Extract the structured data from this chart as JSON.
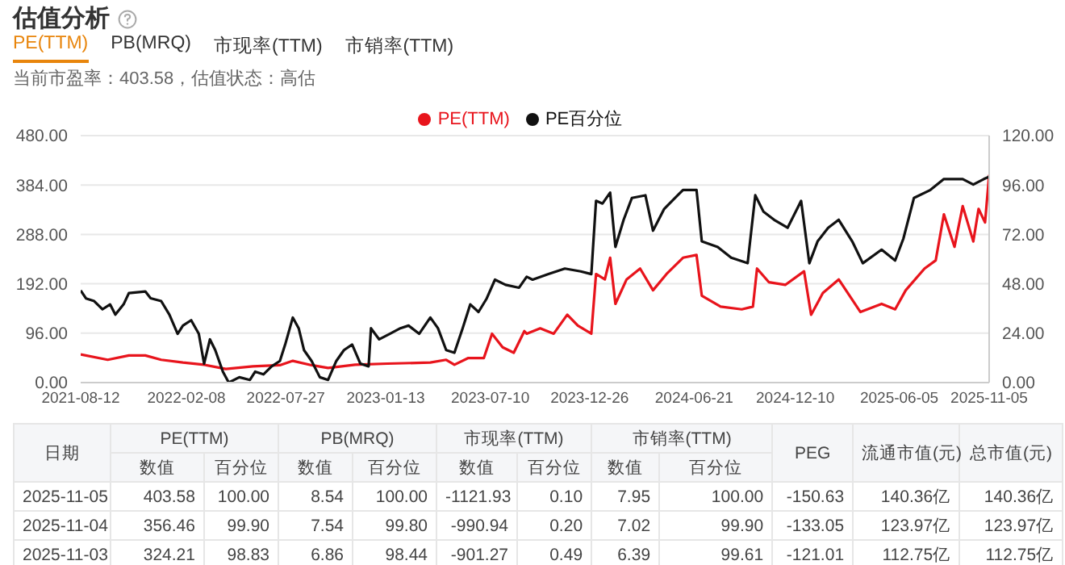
{
  "chart_data": {
    "type": "line",
    "title": "估值分析",
    "subtitle": "当前市盈率：403.58，估值状态：高估",
    "annotations": [
      "PE(TTM)",
      "PB(MRQ)",
      "市现率(TTM)",
      "市销率(TTM)",
      "日期",
      "PE(TTM)",
      "PB(MRQ)",
      "市现率(TTM)",
      "市销率(TTM)",
      "PEG",
      "流通市值(元)",
      "总市值(元)",
      "数值",
      "百分位",
      "数值",
      "百分位",
      "数值",
      "百分位",
      "数值",
      "百分位",
      "2025-11-05",
      "403.58",
      "100.00",
      "8.54",
      "100.00",
      "-1121.93",
      "0.10",
      "7.95",
      "100.00",
      "-150.63",
      "140.36亿",
      "140.36亿",
      "2025-11-04",
      "356.46",
      "99.90",
      "7.54",
      "99.80",
      "-990.94",
      "0.20",
      "7.02",
      "99.90",
      "-133.05",
      "123.97亿",
      "123.97亿",
      "2025-11-03",
      "324.21",
      "98.83",
      "6.86",
      "98.44",
      "-901.27",
      "0.49",
      "6.39",
      "99.61",
      "-121.01",
      "112.75亿",
      "112.75亿"
    ],
    "xlim": [
      "2021-08-12",
      "2025-11-05"
    ],
    "xticks": [
      "2021-08-12",
      "2022-02-08",
      "2022-07-27",
      "2023-01-13",
      "2023-07-10",
      "2023-12-26",
      "2024-06-21",
      "2024-12-10",
      "2025-06-05",
      "2025-11-05"
    ],
    "ylim": [
      0,
      480
    ],
    "yticks": [
      {
        "value": 0,
        "label": "0.00"
      },
      {
        "value": 96,
        "label": "96.00"
      },
      {
        "value": 192,
        "label": "192.00"
      },
      {
        "value": 288,
        "label": "288.00"
      },
      {
        "value": 384,
        "label": "384.00"
      },
      {
        "value": 480,
        "label": "480.00"
      }
    ],
    "y2lim": [
      0,
      120
    ],
    "y2ticks": [
      {
        "value": 0,
        "label": "0.00"
      },
      {
        "value": 24,
        "label": "24.00"
      },
      {
        "value": 48,
        "label": "48.00"
      },
      {
        "value": 72,
        "label": "72.00"
      },
      {
        "value": 96,
        "label": "96.00"
      },
      {
        "value": 120,
        "label": "120.00"
      }
    ],
    "grid": "y",
    "legend": "top",
    "series": [
      {
        "name": "PE(TTM)",
        "color": "#e8141c",
        "x": [
          "2021-08-12",
          "2021-09-27",
          "2021-11-02",
          "2021-11-30",
          "2021-12-27",
          "2022-02-02",
          "2022-03-10",
          "2022-04-16",
          "2022-06-01",
          "2022-07-17",
          "2022-08-08",
          "2022-09-09",
          "2022-10-07",
          "2022-11-22",
          "2023-01-16",
          "2023-03-30",
          "2023-04-26",
          "2023-05-10",
          "2023-06-02",
          "2023-06-29",
          "2023-07-13",
          "2023-07-31",
          "2023-08-19",
          "2023-09-06",
          "2023-09-10",
          "2023-10-03",
          "2023-10-26",
          "2023-11-18",
          "2023-12-06",
          "2023-12-29",
          "2024-01-06",
          "2024-01-21",
          "2024-01-30",
          "2024-02-08",
          "2024-02-27",
          "2024-03-21",
          "2024-04-12",
          "2024-05-05",
          "2024-06-02",
          "2024-06-25",
          "2024-07-04",
          "2024-08-05",
          "2024-09-10",
          "2024-09-29",
          "2024-10-06",
          "2024-10-26",
          "2024-11-23",
          "2024-12-25",
          "2025-01-06",
          "2025-01-26",
          "2025-02-22",
          "2025-03-31",
          "2025-05-06",
          "2025-05-29",
          "2025-06-16",
          "2025-07-18",
          "2025-08-06",
          "2025-08-20",
          "2025-09-07",
          "2025-09-21",
          "2025-10-09",
          "2025-10-18",
          "2025-10-29",
          "2025-11-05"
        ],
        "values": [
          54.9,
          44.3,
          52.8,
          52.8,
          44.3,
          39,
          34.8,
          26.4,
          31.7,
          33.8,
          42.2,
          33.8,
          28.5,
          34.8,
          36.9,
          39,
          44.3,
          34.8,
          47.5,
          47.5,
          95,
          68.6,
          58,
          100,
          95,
          105.5,
          95,
          131.9,
          110.8,
          95,
          211,
          200.5,
          242.7,
          153,
          200.5,
          221.6,
          179.4,
          211,
          242.7,
          248,
          168.8,
          147.7,
          142.4,
          147.7,
          221.6,
          195.2,
          189.9,
          216.3,
          131.9,
          174,
          200.5,
          137.2,
          153,
          142.4,
          179.4,
          221.6,
          237.4,
          327,
          263.8,
          342.9,
          274.3,
          337.6,
          311.2,
          403.58
        ]
      },
      {
        "name": "PE百分位",
        "color": "#111111",
        "axis": "y2",
        "x": [
          "2021-08-12",
          "2021-08-21",
          "2021-09-04",
          "2021-09-18",
          "2021-10-01",
          "2021-10-10",
          "2021-10-24",
          "2021-11-02",
          "2021-11-30",
          "2021-12-09",
          "2021-12-27",
          "2022-01-10",
          "2022-01-24",
          "2022-02-02",
          "2022-02-16",
          "2022-03-01",
          "2022-03-10",
          "2022-03-20",
          "2022-03-29",
          "2022-04-11",
          "2022-04-21",
          "2022-05-09",
          "2022-05-27",
          "2022-06-05",
          "2022-06-19",
          "2022-07-03",
          "2022-07-17",
          "2022-07-26",
          "2022-08-08",
          "2022-08-18",
          "2022-08-27",
          "2022-09-09",
          "2022-09-23",
          "2022-10-07",
          "2022-10-21",
          "2022-11-03",
          "2022-11-17",
          "2022-12-01",
          "2022-12-15",
          "2022-12-19",
          "2023-01-02",
          "2023-01-20",
          "2023-02-07",
          "2023-02-21",
          "2023-03-11",
          "2023-03-30",
          "2023-04-12",
          "2023-04-26",
          "2023-05-10",
          "2023-05-24",
          "2023-06-06",
          "2023-06-20",
          "2023-07-04",
          "2023-07-18",
          "2023-08-05",
          "2023-08-28",
          "2023-09-10",
          "2023-09-20",
          "2023-10-17",
          "2023-11-14",
          "2023-12-11",
          "2023-12-29",
          "2024-01-06",
          "2024-01-17",
          "2024-01-30",
          "2024-02-08",
          "2024-02-22",
          "2024-03-07",
          "2024-03-30",
          "2024-04-12",
          "2024-05-01",
          "2024-05-24",
          "2024-06-02",
          "2024-06-25",
          "2024-07-04",
          "2024-07-31",
          "2024-08-23",
          "2024-09-20",
          "2024-10-03",
          "2024-10-17",
          "2024-11-04",
          "2024-11-27",
          "2024-12-20",
          "2025-01-03",
          "2025-01-17",
          "2025-02-04",
          "2025-02-22",
          "2025-03-17",
          "2025-04-04",
          "2025-05-06",
          "2025-05-29",
          "2025-06-12",
          "2025-06-30",
          "2025-07-28",
          "2025-08-20",
          "2025-09-21",
          "2025-10-09",
          "2025-10-27",
          "2025-11-05"
        ],
        "values": [
          44.8,
          40.9,
          39.6,
          35.6,
          38,
          33,
          38,
          43.5,
          44.3,
          41,
          39.6,
          33,
          23.7,
          27.7,
          30.3,
          23.7,
          9.2,
          21,
          15.8,
          5.3,
          0,
          2.6,
          1.3,
          5.3,
          4,
          7.9,
          10.5,
          18.5,
          31.6,
          26.4,
          15.8,
          10.5,
          2.6,
          1.3,
          10.5,
          15.8,
          18.5,
          9.2,
          7.9,
          26.4,
          21,
          23.7,
          26.4,
          27.7,
          23.7,
          31.6,
          26.4,
          15.8,
          14.5,
          26.4,
          38,
          34.3,
          40.9,
          50,
          47.5,
          46.1,
          51.4,
          50,
          52.7,
          55.4,
          54,
          52.7,
          88.3,
          87,
          92.3,
          65.9,
          79.1,
          89.7,
          91,
          73.8,
          84.4,
          91,
          93.6,
          93.6,
          68.6,
          65.9,
          60.7,
          58,
          91,
          83,
          79.1,
          75.2,
          88.3,
          58,
          68.6,
          75.2,
          79.1,
          68.6,
          58,
          64.6,
          59.3,
          69.9,
          89.7,
          93.6,
          98.9,
          98.9,
          96.2,
          98.9,
          100
        ]
      }
    ]
  }
}
